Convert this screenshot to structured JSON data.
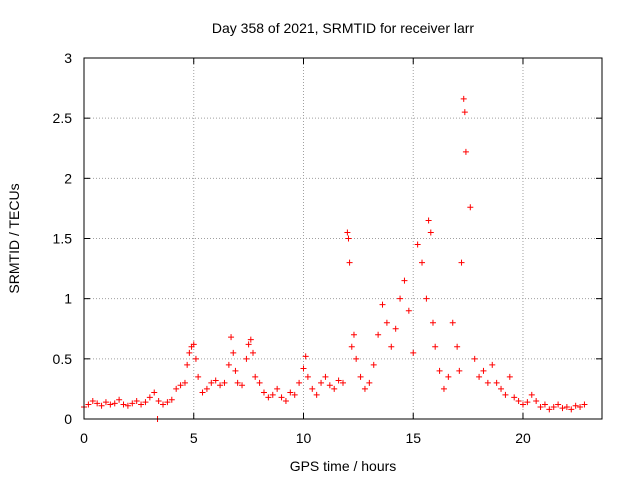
{
  "chart_data": {
    "type": "scatter",
    "title": "Day 358 of 2021, SRMTID for receiver larr",
    "xlabel": "GPS time / hours",
    "ylabel": "SRMTID / TECUs",
    "xlim": [
      0,
      23.6
    ],
    "ylim": [
      0,
      3
    ],
    "x_ticks": [
      0,
      5,
      10,
      15,
      20
    ],
    "x_tick_labels": [
      "0",
      "5",
      "10",
      "15",
      "20"
    ],
    "y_ticks": [
      0,
      0.5,
      1,
      1.5,
      2,
      2.5,
      3
    ],
    "y_tick_labels": [
      "0",
      "0.5",
      "1",
      "1.5",
      "2",
      "2.5",
      "3"
    ],
    "grid": true,
    "marker": "+",
    "series": [
      {
        "name": "SRMTID",
        "color": "#ff0000",
        "x": [
          0.0,
          0.2,
          0.4,
          0.6,
          0.8,
          1.0,
          1.2,
          1.4,
          1.6,
          1.8,
          2.0,
          2.2,
          2.4,
          2.6,
          2.8,
          3.0,
          3.2,
          3.4,
          3.6,
          3.8,
          4.0,
          4.2,
          4.4,
          4.6,
          4.7,
          4.8,
          4.9,
          5.0,
          5.1,
          5.2,
          5.4,
          5.6,
          5.8,
          6.0,
          6.2,
          6.4,
          6.6,
          6.7,
          6.8,
          6.9,
          7.0,
          7.2,
          7.4,
          7.5,
          7.6,
          7.7,
          7.8,
          8.0,
          8.2,
          8.4,
          8.6,
          8.8,
          9.0,
          9.2,
          9.4,
          9.6,
          9.8,
          10.0,
          10.1,
          10.2,
          10.4,
          10.6,
          10.8,
          11.0,
          11.2,
          11.4,
          11.6,
          11.8,
          12.0,
          12.05,
          12.1,
          12.2,
          12.3,
          12.4,
          12.6,
          12.8,
          13.0,
          13.2,
          13.4,
          13.6,
          13.8,
          14.0,
          14.2,
          14.4,
          14.6,
          14.8,
          15.0,
          15.2,
          15.4,
          15.6,
          15.7,
          15.8,
          15.9,
          16.0,
          16.2,
          16.4,
          16.6,
          16.8,
          17.0,
          17.1,
          17.2,
          17.3,
          17.35,
          17.4,
          17.6,
          17.8,
          18.0,
          18.2,
          18.4,
          18.6,
          18.8,
          19.0,
          19.2,
          19.4,
          19.6,
          19.8,
          20.0,
          20.2,
          20.4,
          20.6,
          20.8,
          21.0,
          21.2,
          21.4,
          21.6,
          21.8,
          22.0,
          22.2,
          22.4,
          22.6,
          22.8,
          3.35
        ],
        "y": [
          0.1,
          0.12,
          0.15,
          0.13,
          0.11,
          0.14,
          0.12,
          0.13,
          0.16,
          0.12,
          0.11,
          0.13,
          0.15,
          0.12,
          0.14,
          0.18,
          0.22,
          0.15,
          0.12,
          0.14,
          0.16,
          0.25,
          0.28,
          0.3,
          0.45,
          0.55,
          0.6,
          0.62,
          0.5,
          0.35,
          0.22,
          0.25,
          0.3,
          0.32,
          0.28,
          0.3,
          0.45,
          0.68,
          0.55,
          0.4,
          0.3,
          0.28,
          0.5,
          0.62,
          0.66,
          0.55,
          0.35,
          0.3,
          0.22,
          0.18,
          0.2,
          0.25,
          0.18,
          0.15,
          0.22,
          0.2,
          0.3,
          0.42,
          0.52,
          0.35,
          0.25,
          0.2,
          0.3,
          0.35,
          0.28,
          0.25,
          0.32,
          0.3,
          1.55,
          1.5,
          1.3,
          0.6,
          0.7,
          0.5,
          0.35,
          0.25,
          0.3,
          0.45,
          0.7,
          0.95,
          0.8,
          0.6,
          0.75,
          1.0,
          1.15,
          0.9,
          0.55,
          1.45,
          1.3,
          1.0,
          1.65,
          1.55,
          0.8,
          0.6,
          0.4,
          0.25,
          0.35,
          0.8,
          0.6,
          0.4,
          1.3,
          2.66,
          2.55,
          2.22,
          1.76,
          0.5,
          0.35,
          0.4,
          0.3,
          0.45,
          0.3,
          0.25,
          0.2,
          0.35,
          0.18,
          0.15,
          0.12,
          0.14,
          0.2,
          0.15,
          0.1,
          0.12,
          0.08,
          0.1,
          0.12,
          0.09,
          0.1,
          0.08,
          0.11,
          0.1,
          0.12,
          0.0
        ]
      }
    ]
  }
}
